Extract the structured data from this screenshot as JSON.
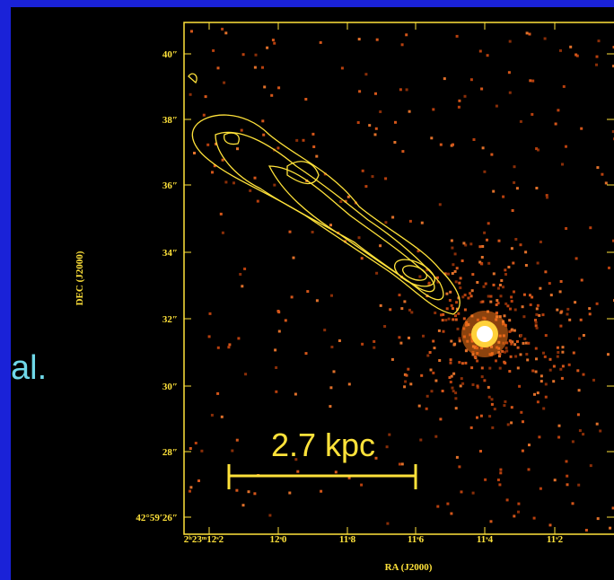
{
  "side_text": "al.",
  "image": {
    "y_axis_label": "DEC (J2000)",
    "x_axis_label": "RA (J2000)",
    "y_tick_labels": [
      "40″",
      "38″",
      "36″",
      "34″",
      "32″",
      "30″",
      "28″",
      "42°59′26″"
    ],
    "x_tick_labels": [
      "2ʰ23ᵐ12ˢ2",
      "12ˢ0",
      "11ˢ8",
      "11ˢ6",
      "11ˢ4",
      "11ˢ2"
    ],
    "scale_bar_label": "2.7 kpc"
  }
}
